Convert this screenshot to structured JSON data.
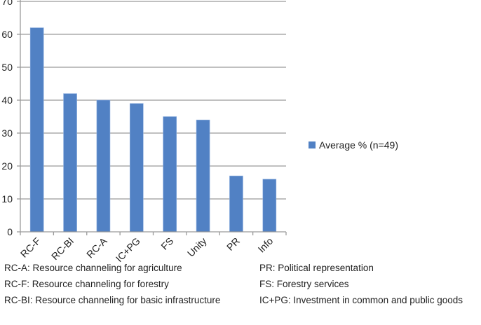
{
  "chart_data": {
    "type": "bar",
    "categories": [
      "RC-F",
      "RC-BI",
      "RC-A",
      "IC+PG",
      "FS",
      "Unity",
      "PR",
      "Info"
    ],
    "series": [
      {
        "name": "Average % (n=49)",
        "values": [
          62,
          42,
          40,
          39,
          35,
          34,
          17,
          16
        ]
      }
    ],
    "ylim": [
      0,
      70
    ],
    "yticks": [
      0,
      10,
      20,
      30,
      40,
      50,
      60,
      70
    ],
    "grid": true,
    "legend_position": "right",
    "bar_color": "#5181c4"
  },
  "notes": {
    "left": [
      "RC-A: Resource channeling for agriculture",
      "RC-F: Resource channeling for forestry",
      "RC-BI: Resource channeling for basic infrastructure"
    ],
    "right": [
      "PR: Political representation",
      "FS: Forestry services",
      "IC+PG: Investment in common and public goods"
    ]
  }
}
